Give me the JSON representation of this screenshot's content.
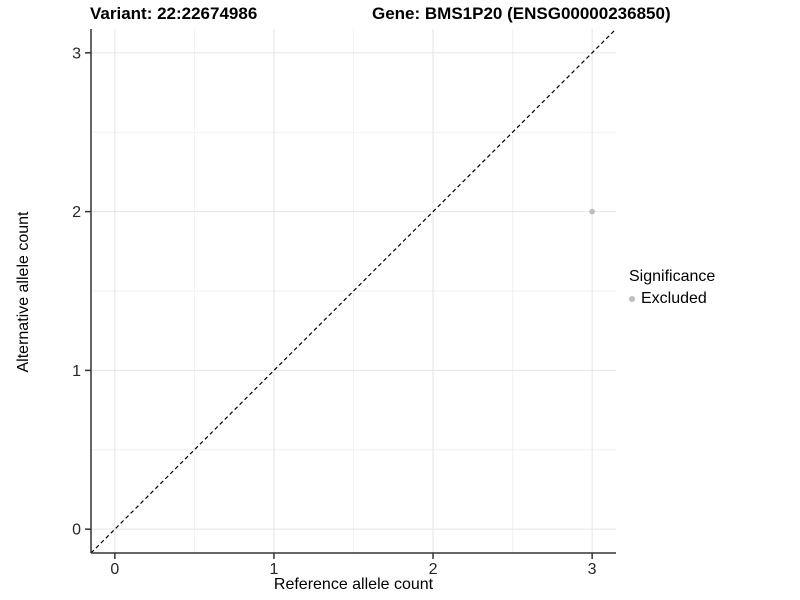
{
  "header": {
    "variant_title": "Variant: 22:22674986",
    "gene_title": "Gene: BMS1P20 (ENSG00000236850)"
  },
  "chart_data": {
    "type": "scatter",
    "xlabel": "Reference allele count",
    "ylabel": "Alternative allele count",
    "xlim": [
      -0.15,
      3.15
    ],
    "ylim": [
      -0.15,
      3.15
    ],
    "x_ticks": [
      0,
      1,
      2,
      3
    ],
    "y_ticks": [
      0,
      1,
      2,
      3
    ],
    "x_tick_labels": [
      "0",
      "1",
      "2",
      "3"
    ],
    "y_tick_labels": [
      "0",
      "1",
      "2",
      "3"
    ],
    "x_minor": [
      0.5,
      1.5,
      2.5
    ],
    "y_minor": [
      0.5,
      1.5,
      2.5
    ],
    "grid": "on",
    "identity_line": {
      "style": "dashed",
      "from": [
        -0.15,
        -0.15
      ],
      "to": [
        3.15,
        3.15
      ]
    },
    "series": [
      {
        "name": "Excluded",
        "points": [
          {
            "x": 3,
            "y": 2
          }
        ],
        "color": "#bdbdbd"
      }
    ],
    "legend": {
      "title": "Significance",
      "position": "right",
      "entries": [
        {
          "label": "Excluded",
          "color": "#bdbdbd"
        }
      ]
    },
    "colors": {
      "grid_major": "#e4e4e4",
      "grid_minor": "#f1f1f1",
      "axis": "#333333",
      "tick_text": "#262626",
      "identity_line": "#000000",
      "background": "#ffffff"
    }
  }
}
